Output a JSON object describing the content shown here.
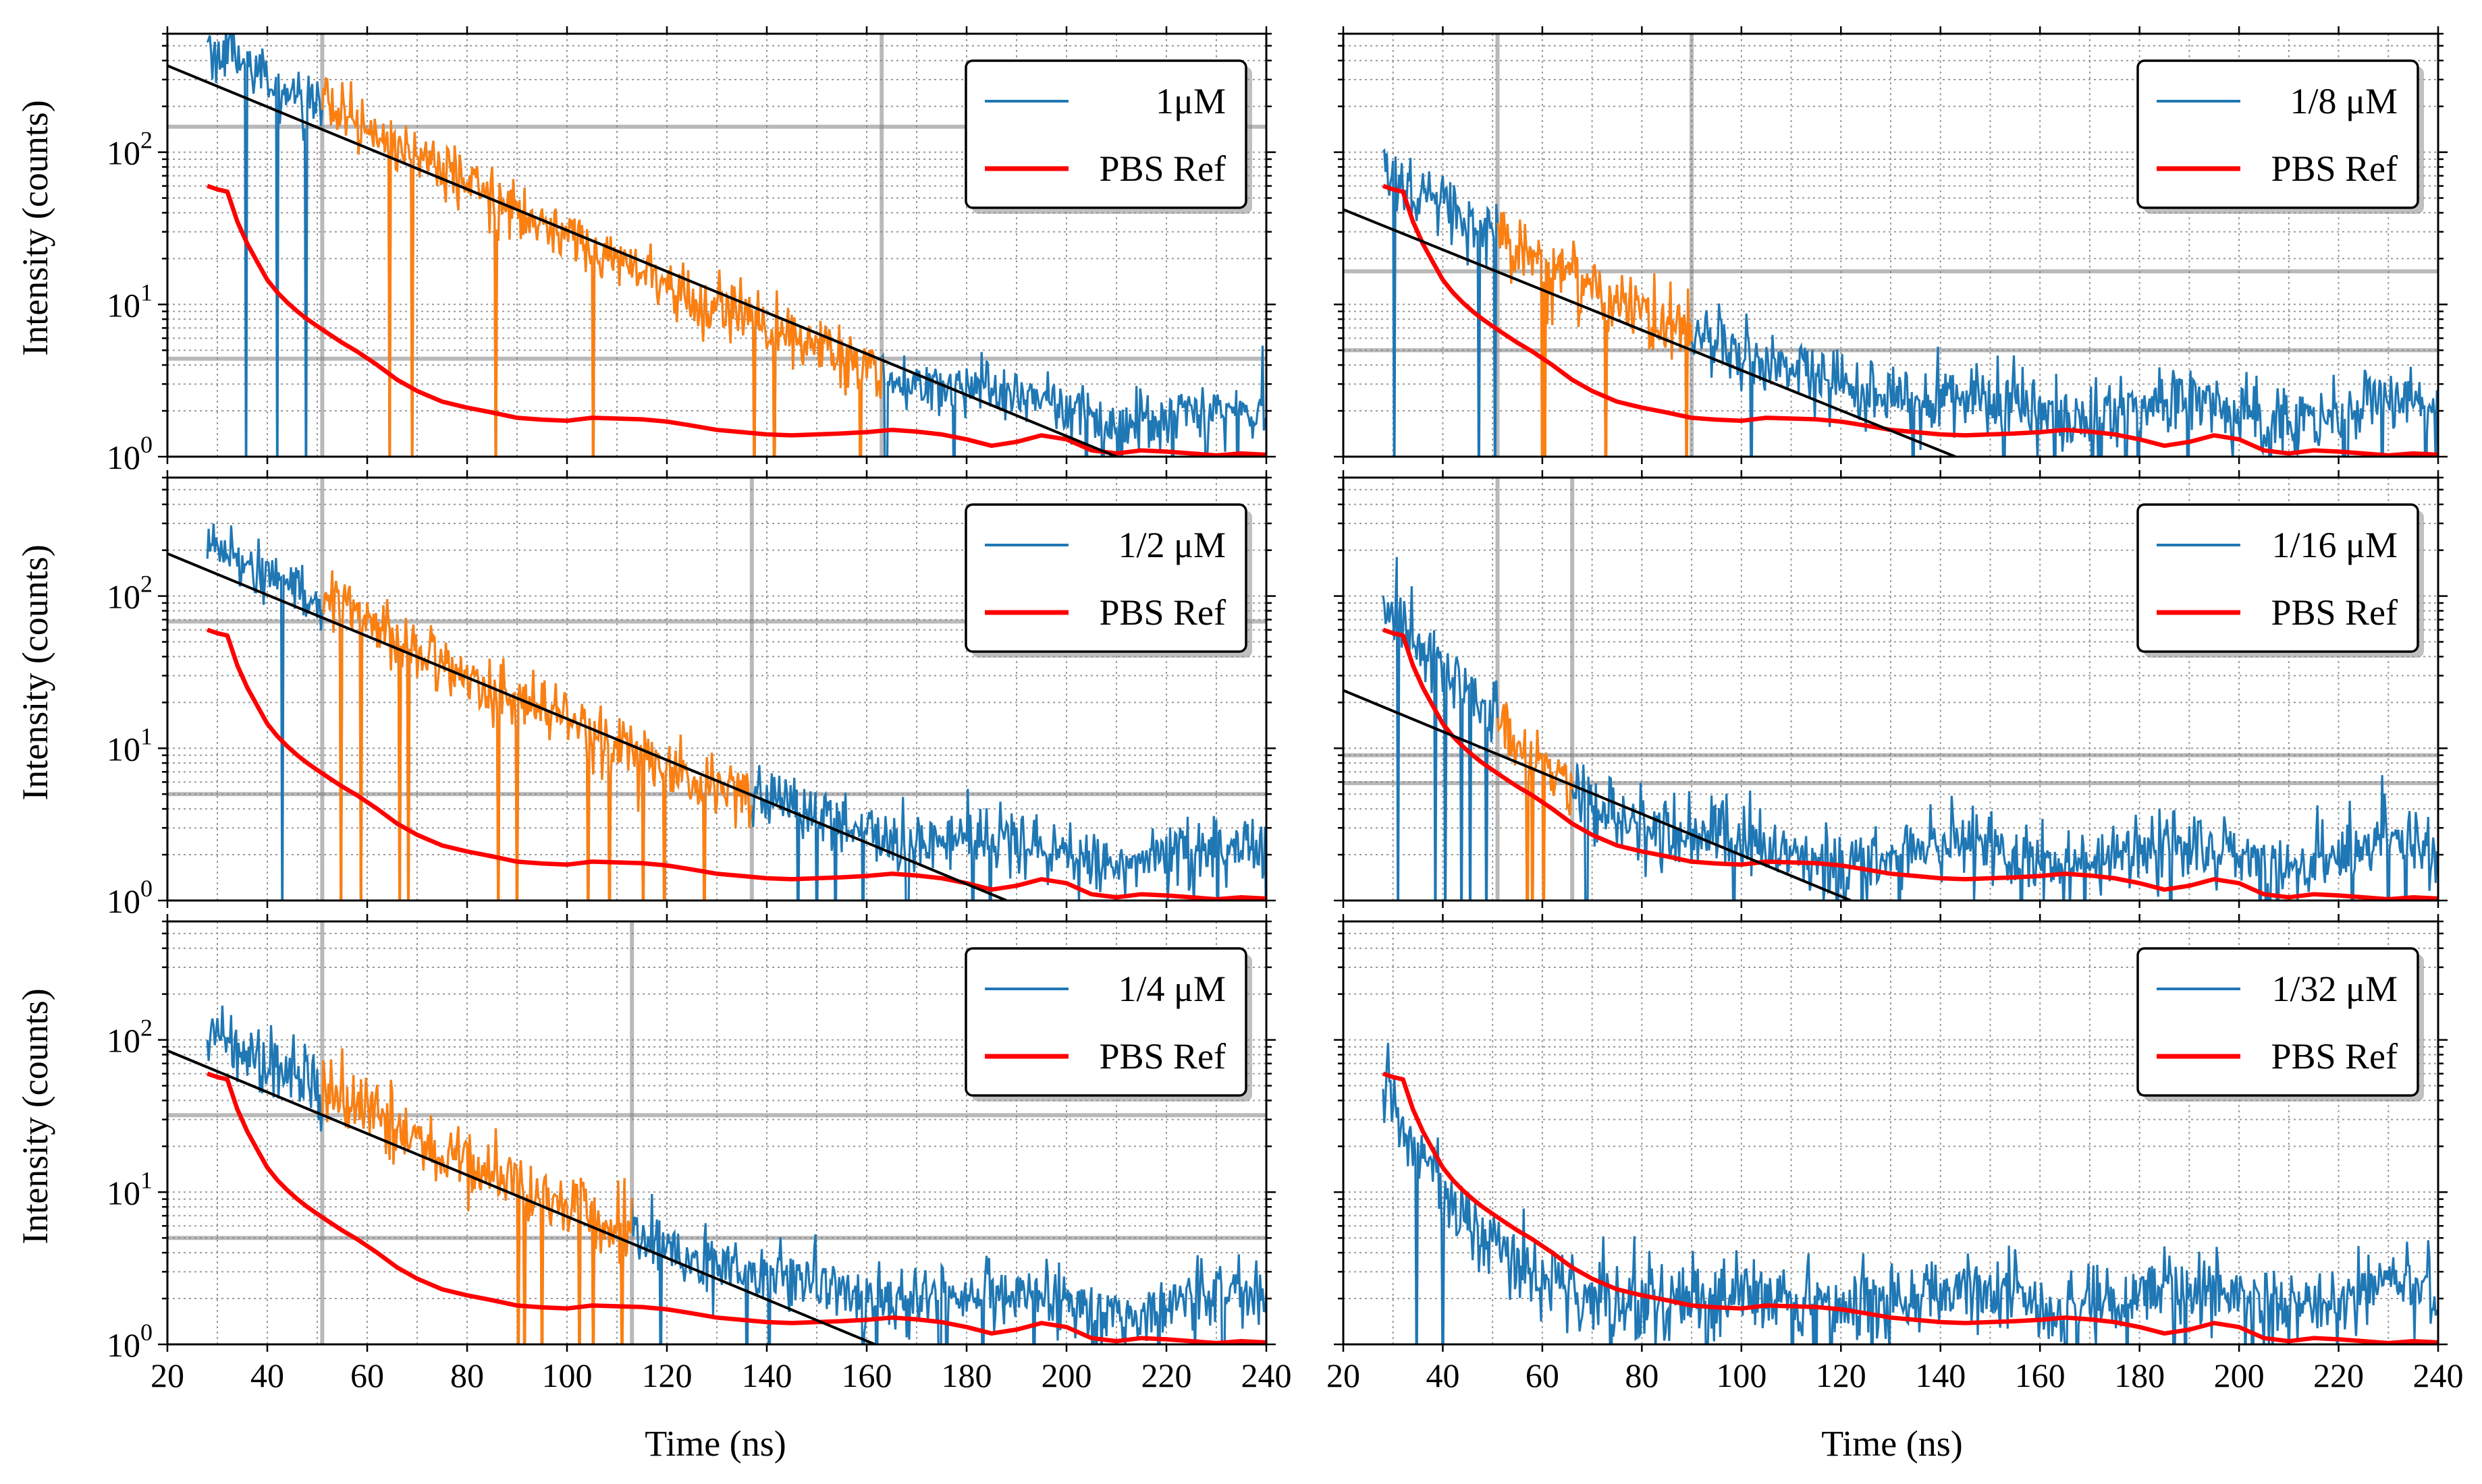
{
  "figure": {
    "ylabel": "Intensity (counts)",
    "xlabel": "Time (ns)",
    "x_ticks": [
      "20",
      "40",
      "60",
      "80",
      "100",
      "120",
      "140",
      "160",
      "180",
      "200",
      "220",
      "240"
    ],
    "y_ticks": [
      {
        "base": "10",
        "exp": "0",
        "value": 1
      },
      {
        "base": "10",
        "exp": "1",
        "value": 10
      },
      {
        "base": "10",
        "exp": "2",
        "value": 100
      }
    ]
  },
  "chart_data": [
    {
      "type": "line",
      "panel": "top-left",
      "xlim": [
        20,
        240
      ],
      "ylim": [
        1,
        600
      ],
      "yscale": "log",
      "grid": true,
      "legend": {
        "placement": "top-right",
        "entries": [
          "1μM",
          "PBS Ref"
        ]
      },
      "series": [
        {
          "name": "1μM",
          "color": "#1f77b4",
          "kind": "noisy-decay",
          "x_start": 28,
          "y0": 500,
          "tau": 24.5,
          "baseline": 1.7,
          "noise": 0.22
        },
        {
          "name": "PBS Ref",
          "color": "#ff0000",
          "kind": "reference"
        }
      ],
      "fit_window": {
        "x_start": 51,
        "x_end": 163,
        "color": "#ff7f0e"
      },
      "fit_line": {
        "x": [
          20,
          210
        ],
        "y": [
          370,
          1.0
        ],
        "color": "#000000"
      },
      "guides": {
        "vertical_x": [
          51,
          163
        ],
        "horizontal_y": [
          147,
          4.4
        ]
      }
    },
    {
      "type": "line",
      "panel": "top-right",
      "xlim": [
        20,
        240
      ],
      "ylim": [
        1,
        600
      ],
      "yscale": "log",
      "grid": true,
      "legend": {
        "placement": "top-right",
        "entries": [
          "1/8 μM",
          "PBS Ref"
        ]
      },
      "series": [
        {
          "name": "1/8 μM",
          "color": "#1f77b4",
          "kind": "noisy-decay",
          "x_start": 28,
          "y0": 75,
          "tau": 22,
          "baseline": 1.9,
          "noise": 0.28
        },
        {
          "name": "PBS Ref",
          "color": "#ff0000",
          "kind": "reference"
        }
      ],
      "fit_window": {
        "x_start": 51,
        "x_end": 90,
        "color": "#ff7f0e"
      },
      "fit_line": {
        "x": [
          20,
          143
        ],
        "y": [
          42,
          1.0
        ],
        "color": "#000000"
      },
      "guides": {
        "vertical_x": [
          51,
          90
        ],
        "horizontal_y": [
          16.5,
          5.0
        ]
      }
    },
    {
      "type": "line",
      "panel": "middle-left",
      "xlim": [
        20,
        240
      ],
      "ylim": [
        1,
        600
      ],
      "yscale": "log",
      "grid": true,
      "legend": {
        "placement": "top-right",
        "entries": [
          "1/2 μM",
          "PBS Ref"
        ]
      },
      "series": [
        {
          "name": "1/2 μM",
          "color": "#1f77b4",
          "kind": "noisy-decay",
          "x_start": 28,
          "y0": 230,
          "tau": 25,
          "baseline": 1.8,
          "noise": 0.24
        },
        {
          "name": "PBS Ref",
          "color": "#ff0000",
          "kind": "reference"
        }
      ],
      "fit_window": {
        "x_start": 51,
        "x_end": 137,
        "color": "#ff7f0e"
      },
      "fit_line": {
        "x": [
          20,
          188
        ],
        "y": [
          190,
          1.0
        ],
        "color": "#000000"
      },
      "guides": {
        "vertical_x": [
          51,
          137
        ],
        "horizontal_y": [
          68,
          5.0
        ]
      }
    },
    {
      "type": "line",
      "panel": "middle-right",
      "xlim": [
        20,
        240
      ],
      "ylim": [
        1,
        600
      ],
      "yscale": "log",
      "grid": true,
      "legend": {
        "placement": "top-right",
        "entries": [
          "1/16 μM",
          "PBS Ref"
        ]
      },
      "series": [
        {
          "name": "1/16 μM",
          "color": "#1f77b4",
          "kind": "noisy-decay",
          "x_start": 28,
          "y0": 85,
          "tau": 12,
          "baseline": 2.0,
          "noise": 0.28
        },
        {
          "name": "PBS Ref",
          "color": "#ff0000",
          "kind": "reference"
        }
      ],
      "fit_window": {
        "x_start": 51,
        "x_end": 66,
        "color": "#ff7f0e"
      },
      "fit_line": {
        "x": [
          20,
          122
        ],
        "y": [
          24,
          1.0
        ],
        "color": "#000000"
      },
      "guides": {
        "vertical_x": [
          51,
          66
        ],
        "horizontal_y": [
          9.0,
          5.9
        ]
      }
    },
    {
      "type": "line",
      "panel": "bottom-left",
      "xlim": [
        20,
        240
      ],
      "ylim": [
        1,
        600
      ],
      "yscale": "log",
      "grid": true,
      "legend": {
        "placement": "top-right",
        "entries": [
          "1/4 μM",
          "PBS Ref"
        ]
      },
      "series": [
        {
          "name": "1/4 μM",
          "color": "#1f77b4",
          "kind": "noisy-decay",
          "x_start": 28,
          "y0": 120,
          "tau": 24,
          "baseline": 1.8,
          "noise": 0.26
        },
        {
          "name": "PBS Ref",
          "color": "#ff0000",
          "kind": "reference"
        }
      ],
      "fit_window": {
        "x_start": 51,
        "x_end": 113,
        "color": "#ff7f0e"
      },
      "fit_line": {
        "x": [
          20,
          165
        ],
        "y": [
          85,
          0.9
        ],
        "color": "#000000"
      },
      "guides": {
        "vertical_x": [
          51,
          113
        ],
        "horizontal_y": [
          32,
          5.0
        ]
      }
    },
    {
      "type": "line",
      "panel": "bottom-right",
      "xlim": [
        20,
        240
      ],
      "ylim": [
        1,
        600
      ],
      "yscale": "log",
      "grid": true,
      "legend": {
        "placement": "top-right",
        "entries": [
          "1/32 μM",
          "PBS Ref"
        ]
      },
      "series": [
        {
          "name": "1/32 μM",
          "color": "#1f77b4",
          "kind": "noisy-decay",
          "x_start": 28,
          "y0": 50,
          "tau": 7,
          "baseline": 2.0,
          "noise": 0.3
        },
        {
          "name": "PBS Ref",
          "color": "#ff0000",
          "kind": "reference"
        }
      ],
      "fit_window": null,
      "fit_line": null,
      "guides": {
        "vertical_x": [],
        "horizontal_y": []
      }
    }
  ],
  "reference_curve": {
    "name": "PBS Ref",
    "x": [
      28,
      30,
      32,
      34,
      36,
      38,
      40,
      42,
      44,
      46,
      48,
      50,
      52,
      55,
      58,
      62,
      66,
      70,
      75,
      80,
      85,
      90,
      95,
      100,
      105,
      110,
      115,
      120,
      125,
      130,
      135,
      140,
      145,
      150,
      155,
      160,
      165,
      170,
      175,
      180,
      185,
      190,
      195,
      200,
      205,
      210,
      215,
      220,
      225,
      230,
      235,
      240
    ],
    "y": [
      60,
      57,
      55,
      35,
      25,
      19,
      14.5,
      12,
      10.3,
      9.0,
      8.0,
      7.2,
      6.5,
      5.6,
      4.9,
      4.0,
      3.2,
      2.7,
      2.3,
      2.1,
      1.95,
      1.8,
      1.75,
      1.72,
      1.8,
      1.78,
      1.76,
      1.7,
      1.6,
      1.5,
      1.45,
      1.4,
      1.38,
      1.4,
      1.42,
      1.45,
      1.5,
      1.46,
      1.4,
      1.3,
      1.18,
      1.25,
      1.38,
      1.3,
      1.1,
      1.05,
      1.1,
      1.08,
      1.05,
      1.02,
      1.05,
      1.03
    ]
  }
}
